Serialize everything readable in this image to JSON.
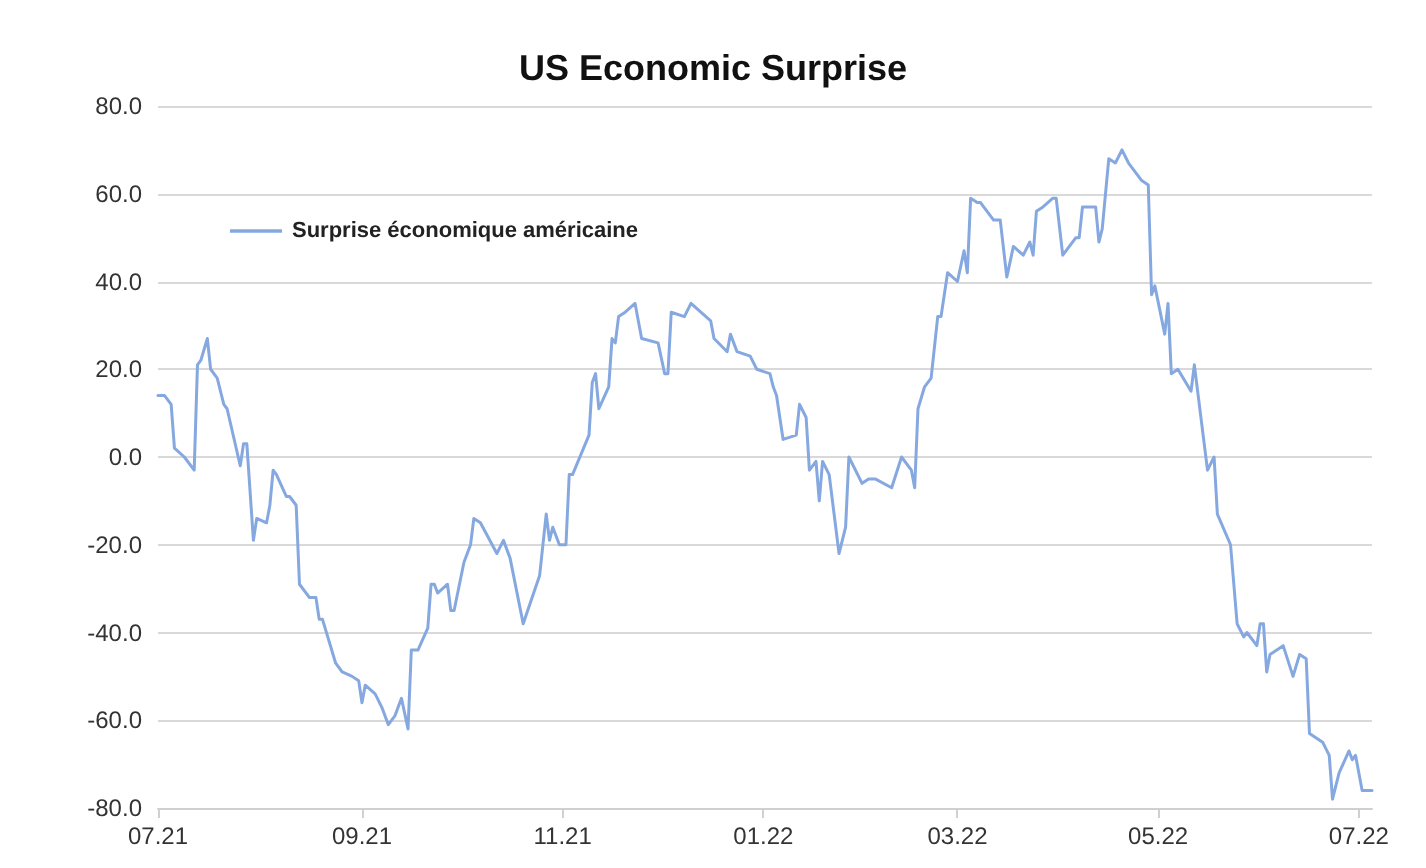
{
  "chart_data": {
    "type": "line",
    "title": "US Economic Surprise",
    "x": [
      "2021-07-01",
      "2021-07-03",
      "2021-07-05",
      "2021-07-06",
      "2021-07-09",
      "2021-07-12",
      "2021-07-13",
      "2021-07-14",
      "2021-07-16",
      "2021-07-17",
      "2021-07-19",
      "2021-07-21",
      "2021-07-22",
      "2021-07-26",
      "2021-07-27",
      "2021-07-28",
      "2021-07-30",
      "2021-07-31",
      "2021-08-03",
      "2021-08-04",
      "2021-08-05",
      "2021-08-06",
      "2021-08-09",
      "2021-08-10",
      "2021-08-12",
      "2021-08-13",
      "2021-08-16",
      "2021-08-18",
      "2021-08-19",
      "2021-08-20",
      "2021-08-24",
      "2021-08-26",
      "2021-08-29",
      "2021-08-31",
      "2021-09-01",
      "2021-09-02",
      "2021-09-05",
      "2021-09-07",
      "2021-09-09",
      "2021-09-11",
      "2021-09-13",
      "2021-09-15",
      "2021-09-16",
      "2021-09-18",
      "2021-09-21",
      "2021-09-22",
      "2021-09-23",
      "2021-09-24",
      "2021-09-27",
      "2021-09-28",
      "2021-09-29",
      "2021-10-02",
      "2021-10-04",
      "2021-10-05",
      "2021-10-07",
      "2021-10-12",
      "2021-10-14",
      "2021-10-16",
      "2021-10-20",
      "2021-10-25",
      "2021-10-27",
      "2021-10-28",
      "2021-10-29",
      "2021-10-31",
      "2021-11-02",
      "2021-11-03",
      "2021-11-04",
      "2021-11-09",
      "2021-11-10",
      "2021-11-11",
      "2021-11-12",
      "2021-11-15",
      "2021-11-16",
      "2021-11-17",
      "2021-11-18",
      "2021-11-20",
      "2021-11-23",
      "2021-11-25",
      "2021-11-30",
      "2021-12-02",
      "2021-12-03",
      "2021-12-04",
      "2021-12-08",
      "2021-12-10",
      "2021-12-13",
      "2021-12-16",
      "2021-12-17",
      "2021-12-21",
      "2021-12-22",
      "2021-12-24",
      "2021-12-28",
      "2021-12-30",
      "2022-01-03",
      "2022-01-04",
      "2022-01-05",
      "2022-01-07",
      "2022-01-11",
      "2022-01-12",
      "2022-01-14",
      "2022-01-15",
      "2022-01-17",
      "2022-01-18",
      "2022-01-19",
      "2022-01-21",
      "2022-01-24",
      "2022-01-26",
      "2022-01-27",
      "2022-01-31",
      "2022-02-02",
      "2022-02-04",
      "2022-02-09",
      "2022-02-12",
      "2022-02-15",
      "2022-02-16",
      "2022-02-17",
      "2022-02-19",
      "2022-02-21",
      "2022-02-23",
      "2022-02-24",
      "2022-02-26",
      "2022-03-01",
      "2022-03-03",
      "2022-03-04",
      "2022-03-05",
      "2022-03-07",
      "2022-03-08",
      "2022-03-10",
      "2022-03-12",
      "2022-03-14",
      "2022-03-16",
      "2022-03-18",
      "2022-03-21",
      "2022-03-23",
      "2022-03-24",
      "2022-03-25",
      "2022-03-27",
      "2022-03-30",
      "2022-03-31",
      "2022-04-02",
      "2022-04-06",
      "2022-04-07",
      "2022-04-08",
      "2022-04-12",
      "2022-04-13",
      "2022-04-14",
      "2022-04-16",
      "2022-04-18",
      "2022-04-20",
      "2022-04-22",
      "2022-04-26",
      "2022-04-28",
      "2022-04-29",
      "2022-04-30",
      "2022-05-03",
      "2022-05-04",
      "2022-05-05",
      "2022-05-07",
      "2022-05-11",
      "2022-05-12",
      "2022-05-16",
      "2022-05-18",
      "2022-05-19",
      "2022-05-23",
      "2022-05-25",
      "2022-05-27",
      "2022-05-28",
      "2022-05-31",
      "2022-06-01",
      "2022-06-02",
      "2022-06-03",
      "2022-06-04",
      "2022-06-08",
      "2022-06-11",
      "2022-06-13",
      "2022-06-15",
      "2022-06-16",
      "2022-06-20",
      "2022-06-22",
      "2022-06-23",
      "2022-06-25",
      "2022-06-28",
      "2022-06-29",
      "2022-06-30",
      "2022-07-02",
      "2022-07-05"
    ],
    "series": [
      {
        "name": "Surprise économique américaine",
        "color": "#86a8e0",
        "values": [
          14,
          14,
          12,
          2,
          0,
          -3,
          21,
          22,
          27,
          20,
          18,
          12,
          11,
          -2,
          3,
          3,
          -19,
          -14,
          -15,
          -11,
          -3,
          -4,
          -9,
          -9,
          -11,
          -29,
          -32,
          -32,
          -37,
          -37,
          -47,
          -49,
          -50,
          -51,
          -56,
          -52,
          -54,
          -57,
          -61,
          -59,
          -55,
          -62,
          -44,
          -44,
          -39,
          -29,
          -29,
          -31,
          -29,
          -35,
          -35,
          -24,
          -20,
          -14,
          -15,
          -22,
          -19,
          -23,
          -38,
          -27,
          -13,
          -19,
          -16,
          -20,
          -20,
          -4,
          -4,
          5,
          17,
          19,
          11,
          16,
          27,
          26,
          32,
          33,
          35,
          27,
          26,
          19,
          19,
          33,
          32,
          35,
          33,
          31,
          27,
          24,
          28,
          24,
          23,
          20,
          19,
          16,
          14,
          4,
          5,
          12,
          9,
          -3,
          -1,
          -10,
          -1,
          -4,
          -22,
          -16,
          0,
          -6,
          -5,
          -5,
          -7,
          0,
          -3,
          -7,
          11,
          16,
          18,
          32,
          32,
          42,
          40,
          47,
          42,
          59,
          58,
          58,
          56,
          54,
          54,
          41,
          48,
          46,
          49,
          46,
          56,
          57,
          59,
          59,
          46,
          50,
          50,
          57,
          57,
          49,
          52,
          68,
          67,
          70,
          67,
          63,
          62,
          37,
          39,
          28,
          35,
          19,
          20,
          15,
          21,
          -3,
          0,
          -13,
          -20,
          -38,
          -41,
          -40,
          -43,
          -38,
          -38,
          -49,
          -45,
          -43,
          -50,
          -45,
          -46,
          -63,
          -65,
          -68,
          -78,
          -72,
          -67,
          -69,
          -68,
          -76,
          -76
        ]
      }
    ],
    "xlim": [
      "2021-07-01",
      "2022-07-05"
    ],
    "xticks": [
      {
        "value": "2021-07-01",
        "label": "07.21"
      },
      {
        "value": "2021-09-01",
        "label": "09.21"
      },
      {
        "value": "2021-11-01",
        "label": "11.21"
      },
      {
        "value": "2022-01-01",
        "label": "01.22"
      },
      {
        "value": "2022-03-01",
        "label": "03.22"
      },
      {
        "value": "2022-05-01",
        "label": "05.22"
      },
      {
        "value": "2022-07-01",
        "label": "07.22"
      }
    ],
    "ylim": [
      -80,
      80
    ],
    "yticks": [
      {
        "value": -80,
        "label": "-80.0"
      },
      {
        "value": -60,
        "label": "-60.0"
      },
      {
        "value": -40,
        "label": "-40.0"
      },
      {
        "value": -20,
        "label": "-20.0"
      },
      {
        "value": 0,
        "label": "0.0"
      },
      {
        "value": 20,
        "label": "20.0"
      },
      {
        "value": 40,
        "label": "40.0"
      },
      {
        "value": 60,
        "label": "60.0"
      },
      {
        "value": 80,
        "label": "80.0"
      }
    ],
    "grid": "y",
    "legend": "top left",
    "marker": "none",
    "line_style": "solid"
  }
}
